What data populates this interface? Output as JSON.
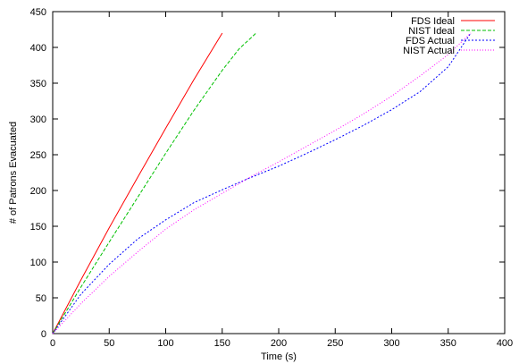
{
  "chart_data": {
    "type": "line",
    "title": "",
    "xlabel": "Time (s)",
    "ylabel": "# of Patrons Evacuated",
    "xlim": [
      0,
      400
    ],
    "ylim": [
      0,
      450
    ],
    "x_ticks": [
      0,
      50,
      100,
      150,
      200,
      250,
      300,
      350,
      400
    ],
    "y_ticks": [
      0,
      50,
      100,
      150,
      200,
      250,
      300,
      350,
      400,
      450
    ],
    "grid": false,
    "legend_position": "top-right",
    "series": [
      {
        "name": "FDS Ideal",
        "color": "#ff0000",
        "dash": "solid",
        "points": [
          [
            0,
            0
          ],
          [
            25,
            75
          ],
          [
            50,
            148
          ],
          [
            75,
            218
          ],
          [
            100,
            287
          ],
          [
            125,
            355
          ],
          [
            150,
            420
          ]
        ]
      },
      {
        "name": "NIST Ideal",
        "color": "#00c000",
        "dash": "dashed",
        "points": [
          [
            0,
            0
          ],
          [
            25,
            65
          ],
          [
            50,
            128
          ],
          [
            75,
            190
          ],
          [
            100,
            252
          ],
          [
            125,
            312
          ],
          [
            150,
            368
          ],
          [
            165,
            398
          ],
          [
            180,
            420
          ]
        ]
      },
      {
        "name": "FDS Actual",
        "color": "#0000ff",
        "dash": "dotted-short",
        "points": [
          [
            0,
            0
          ],
          [
            25,
            55
          ],
          [
            50,
            97
          ],
          [
            75,
            132
          ],
          [
            100,
            159
          ],
          [
            125,
            183
          ],
          [
            150,
            201
          ],
          [
            175,
            218
          ],
          [
            200,
            234
          ],
          [
            225,
            252
          ],
          [
            250,
            271
          ],
          [
            275,
            291
          ],
          [
            300,
            313
          ],
          [
            325,
            338
          ],
          [
            350,
            373
          ],
          [
            370,
            420
          ]
        ]
      },
      {
        "name": "NIST Actual",
        "color": "#ff00ff",
        "dash": "dotted",
        "points": [
          [
            0,
            0
          ],
          [
            25,
            42
          ],
          [
            50,
            80
          ],
          [
            75,
            114
          ],
          [
            100,
            146
          ],
          [
            125,
            173
          ],
          [
            150,
            196
          ],
          [
            175,
            219
          ],
          [
            200,
            240
          ],
          [
            225,
            262
          ],
          [
            250,
            284
          ],
          [
            275,
            307
          ],
          [
            300,
            332
          ],
          [
            325,
            360
          ],
          [
            350,
            390
          ],
          [
            370,
            420
          ]
        ]
      }
    ]
  }
}
